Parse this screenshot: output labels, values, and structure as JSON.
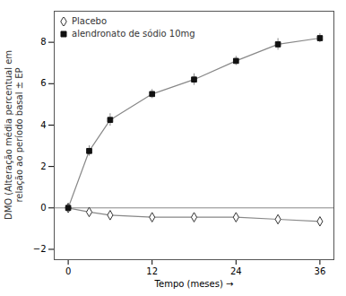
{
  "chart_data": {
    "type": "line",
    "xlabel": "Tempo (meses)",
    "ylabel": "DMO (Alteração média percentual em\nrelação ao período basal ± EP",
    "x": [
      0,
      3,
      6,
      12,
      18,
      24,
      30,
      36
    ],
    "series": [
      {
        "name": "Placebo",
        "color": "#333333",
        "marker": "diamond",
        "values": [
          0.0,
          -0.2,
          -0.35,
          -0.45,
          -0.45,
          -0.45,
          -0.55,
          -0.65
        ],
        "errors": [
          0.08,
          0.08,
          0.1,
          0.1,
          0.1,
          0.1,
          0.1,
          0.12
        ]
      },
      {
        "name": "alendronato de sódio 10mg",
        "color": "#111111",
        "marker": "square",
        "values": [
          0.0,
          2.75,
          4.25,
          5.5,
          6.2,
          7.1,
          7.9,
          8.2
        ],
        "errors": [
          0.15,
          0.25,
          0.3,
          0.22,
          0.28,
          0.22,
          0.28,
          0.22
        ]
      }
    ],
    "color": "#888888",
    "hline": 0,
    "xlim": [
      -2,
      38
    ],
    "xticks": [
      0,
      12,
      24,
      36
    ],
    "ylim": [
      -2.5,
      9.5
    ],
    "yticks": [
      -2,
      0,
      2,
      4,
      6,
      8
    ],
    "grid": false,
    "legend": "upper left"
  }
}
